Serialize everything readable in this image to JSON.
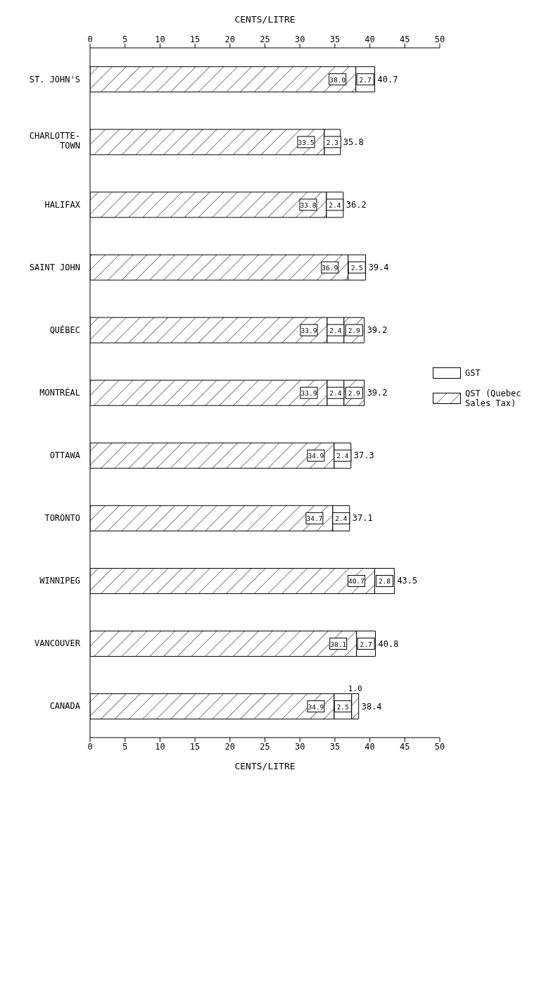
{
  "chart_data": {
    "type": "bar",
    "orientation": "horizontal",
    "stacked": true,
    "categories": [
      "ST. JOHN'S",
      "CHARLOTTE- TOWN",
      "HALIFAX",
      "SAINT JOHN",
      "QUÉBEC",
      "MONTRÉAL",
      "OTTAWA",
      "TORONTO",
      "WINNIPEG",
      "VANCOUVER",
      "CANADA"
    ],
    "series": [
      {
        "color": "#000000",
        "values": [
          38.0,
          33.5,
          33.8,
          36.9,
          33.9,
          33.9,
          34.9,
          34.7,
          40.7,
          38.1,
          34.9
        ],
        "value_labels": [
          "38.0",
          "33.5",
          "33.8",
          "36.9",
          "33.9",
          "33.9",
          "34.9",
          "34.7",
          "40.7",
          "38.1",
          "34.9"
        ]
      },
      {
        "name": "GST",
        "color": "#ffffff",
        "values": [
          2.7,
          2.3,
          2.4,
          2.5,
          2.4,
          2.4,
          2.4,
          2.4,
          2.8,
          2.7,
          2.5
        ],
        "value_labels": [
          "2.7",
          "2.3",
          "2.4",
          "2.5",
          "2.4",
          "2.4",
          "2.4",
          "2.4",
          "2.8",
          "2.7",
          "2.5"
        ]
      },
      {
        "name": "QST (Quebec Sales Tax)",
        "color": "#000000",
        "values": [
          null,
          null,
          null,
          null,
          2.9,
          2.9,
          null,
          null,
          null,
          null,
          1.0
        ],
        "value_labels": [
          null,
          null,
          null,
          null,
          "2.9",
          "2.9",
          null,
          null,
          null,
          null,
          "1.0"
        ]
      }
    ],
    "totals": [
      "40.7",
      "35.8",
      "36.2",
      "39.4",
      "39.2",
      "39.2",
      "37.3",
      "37.1",
      "43.5",
      "40.8",
      "38.4"
    ],
    "xlabel": "CENTS/LITRE",
    "x2label": "CENTS/LITRE",
    "xlim": [
      0,
      50
    ],
    "xticks": [
      0,
      5,
      10,
      15,
      20,
      25,
      30,
      35,
      40,
      45,
      50
    ],
    "x2lim": [
      0,
      50
    ],
    "x2ticks": [
      0,
      5,
      10,
      15,
      20,
      25,
      30,
      35,
      40,
      45,
      50
    ],
    "grid": false,
    "legend": "right"
  }
}
